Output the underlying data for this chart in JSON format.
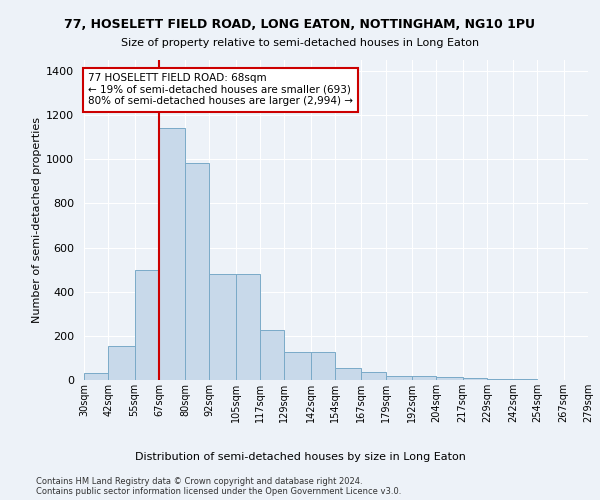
{
  "title1": "77, HOSELETT FIELD ROAD, LONG EATON, NOTTINGHAM, NG10 1PU",
  "title2": "Size of property relative to semi-detached houses in Long Eaton",
  "xlabel": "Distribution of semi-detached houses by size in Long Eaton",
  "ylabel": "Number of semi-detached properties",
  "footnote1": "Contains HM Land Registry data © Crown copyright and database right 2024.",
  "footnote2": "Contains public sector information licensed under the Open Government Licence v3.0.",
  "annotation_title": "77 HOSELETT FIELD ROAD: 68sqm",
  "annotation_line1": "← 19% of semi-detached houses are smaller (693)",
  "annotation_line2": "80% of semi-detached houses are larger (2,994) →",
  "property_sqm": 68,
  "bar_lefts": [
    30,
    42,
    55,
    67,
    80,
    92,
    105,
    117,
    129,
    142,
    154,
    167,
    179,
    192,
    204,
    217,
    229,
    242,
    254,
    267
  ],
  "bar_rights": [
    42,
    55,
    67,
    80,
    92,
    105,
    117,
    129,
    142,
    154,
    167,
    179,
    192,
    204,
    217,
    229,
    242,
    254,
    267,
    279
  ],
  "bar_heights": [
    30,
    155,
    500,
    1140,
    985,
    480,
    480,
    225,
    125,
    125,
    55,
    35,
    20,
    20,
    12,
    8,
    5,
    3,
    2,
    0
  ],
  "bar_color": "#c8d9ea",
  "bar_edge_color": "#7aaac8",
  "red_line_x": 67,
  "ylim": [
    0,
    1450
  ],
  "yticks": [
    0,
    200,
    400,
    600,
    800,
    1000,
    1200,
    1400
  ],
  "xtick_labels": [
    "30sqm",
    "42sqm",
    "55sqm",
    "67sqm",
    "80sqm",
    "92sqm",
    "105sqm",
    "117sqm",
    "129sqm",
    "142sqm",
    "154sqm",
    "167sqm",
    "179sqm",
    "192sqm",
    "204sqm",
    "217sqm",
    "229sqm",
    "242sqm",
    "254sqm",
    "267sqm",
    "279sqm"
  ],
  "background_color": "#edf2f8",
  "grid_color": "#ffffff",
  "annotation_box_facecolor": "#ffffff",
  "annotation_box_edgecolor": "#cc0000",
  "red_line_color": "#cc0000",
  "title1_fontsize": 9,
  "title2_fontsize": 8
}
